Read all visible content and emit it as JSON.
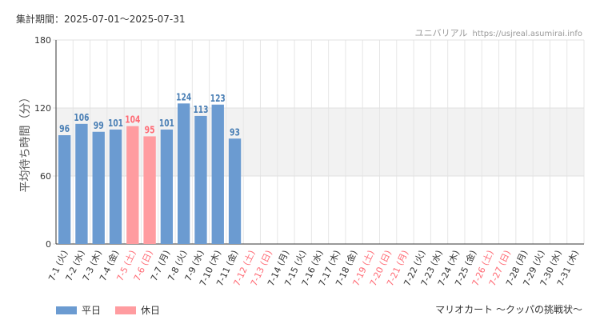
{
  "header": {
    "period": "集計期間：2025-07-01～2025-07-31",
    "site_name": "ユニバリアル",
    "site_url": "https://usjreal.asumirai.info"
  },
  "footer": {
    "attraction": "マリオカート 〜クッパの挑戦状〜"
  },
  "colors": {
    "weekday": "#6b9bd1",
    "holiday": "#ff9ca0",
    "weekday_label": "#4a7fb5",
    "holiday_label": "#ff6b75",
    "band": "#f2f2f2"
  },
  "chart_data": {
    "type": "bar",
    "ylabel": "平均待ち時間（分）",
    "ylim": [
      0,
      180
    ],
    "yticks": [
      0,
      60,
      120,
      180
    ],
    "band": [
      60,
      120
    ],
    "categories": [
      "7-1 (火)",
      "7-2 (水)",
      "7-3 (木)",
      "7-4 (金)",
      "7-5 (土)",
      "7-6 (日)",
      "7-7 (月)",
      "7-8 (火)",
      "7-9 (水)",
      "7-10 (木)",
      "7-11 (金)",
      "7-12 (土)",
      "7-13 (日)",
      "7-14 (月)",
      "7-15 (火)",
      "7-16 (水)",
      "7-17 (木)",
      "7-18 (金)",
      "7-19 (土)",
      "7-20 (日)",
      "7-21 (月)",
      "7-22 (火)",
      "7-23 (水)",
      "7-24 (木)",
      "7-25 (金)",
      "7-26 (土)",
      "7-27 (日)",
      "7-28 (月)",
      "7-29 (火)",
      "7-30 (水)",
      "7-31 (木)"
    ],
    "holiday": [
      false,
      false,
      false,
      false,
      true,
      true,
      false,
      false,
      false,
      false,
      false,
      true,
      true,
      false,
      false,
      false,
      false,
      false,
      true,
      true,
      true,
      false,
      false,
      false,
      false,
      true,
      true,
      false,
      false,
      false,
      false
    ],
    "values": [
      96,
      106,
      99,
      101,
      104,
      95,
      101,
      124,
      113,
      123,
      93,
      null,
      null,
      null,
      null,
      null,
      null,
      null,
      null,
      null,
      null,
      null,
      null,
      null,
      null,
      null,
      null,
      null,
      null,
      null,
      null
    ],
    "legend": [
      "平日",
      "休日"
    ]
  }
}
